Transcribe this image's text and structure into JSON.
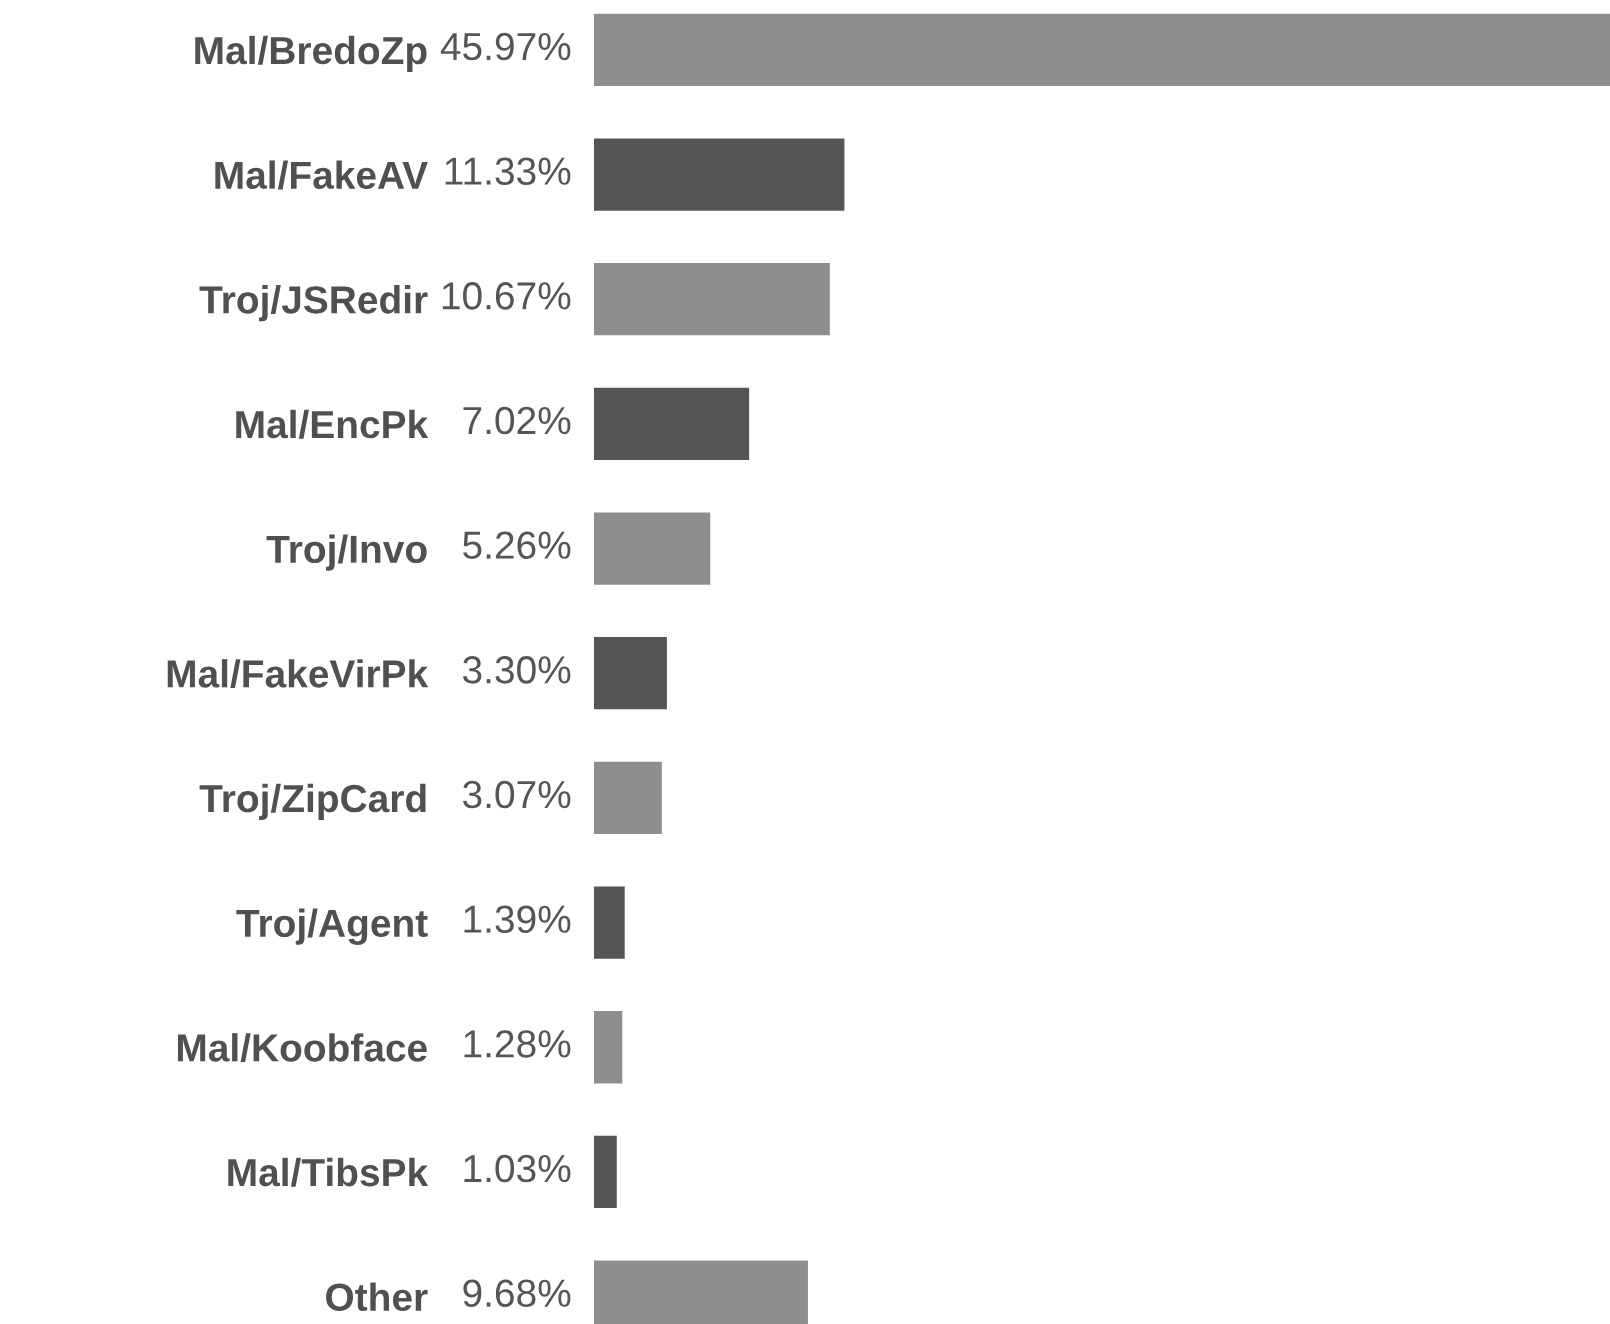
{
  "chart_data": {
    "type": "bar",
    "orientation": "horizontal",
    "categories": [
      "Mal/BredoZp",
      "Mal/FakeAV",
      "Troj/JSRedir",
      "Mal/EncPk",
      "Troj/Invo",
      "Mal/FakeVirPk",
      "Troj/ZipCard",
      "Troj/Agent",
      "Mal/Koobface",
      "Mal/TibsPk",
      "Other"
    ],
    "values": [
      45.97,
      11.33,
      10.67,
      7.02,
      5.26,
      3.3,
      3.07,
      1.39,
      1.28,
      1.03,
      9.68
    ],
    "value_labels": [
      "45.97%",
      "11.33%",
      "10.67%",
      "7.02%",
      "5.26%",
      "3.30%",
      "3.07%",
      "1.39%",
      "1.28%",
      "1.03%",
      "9.68%"
    ],
    "colors": [
      "#8e8e8e",
      "#555555",
      "#8e8e8e",
      "#555555",
      "#8e8e8e",
      "#555555",
      "#8e8e8e",
      "#555555",
      "#8e8e8e",
      "#555555",
      "#8e8e8e"
    ],
    "xlim": [
      0,
      45.97
    ],
    "tick_labels": "y"
  }
}
